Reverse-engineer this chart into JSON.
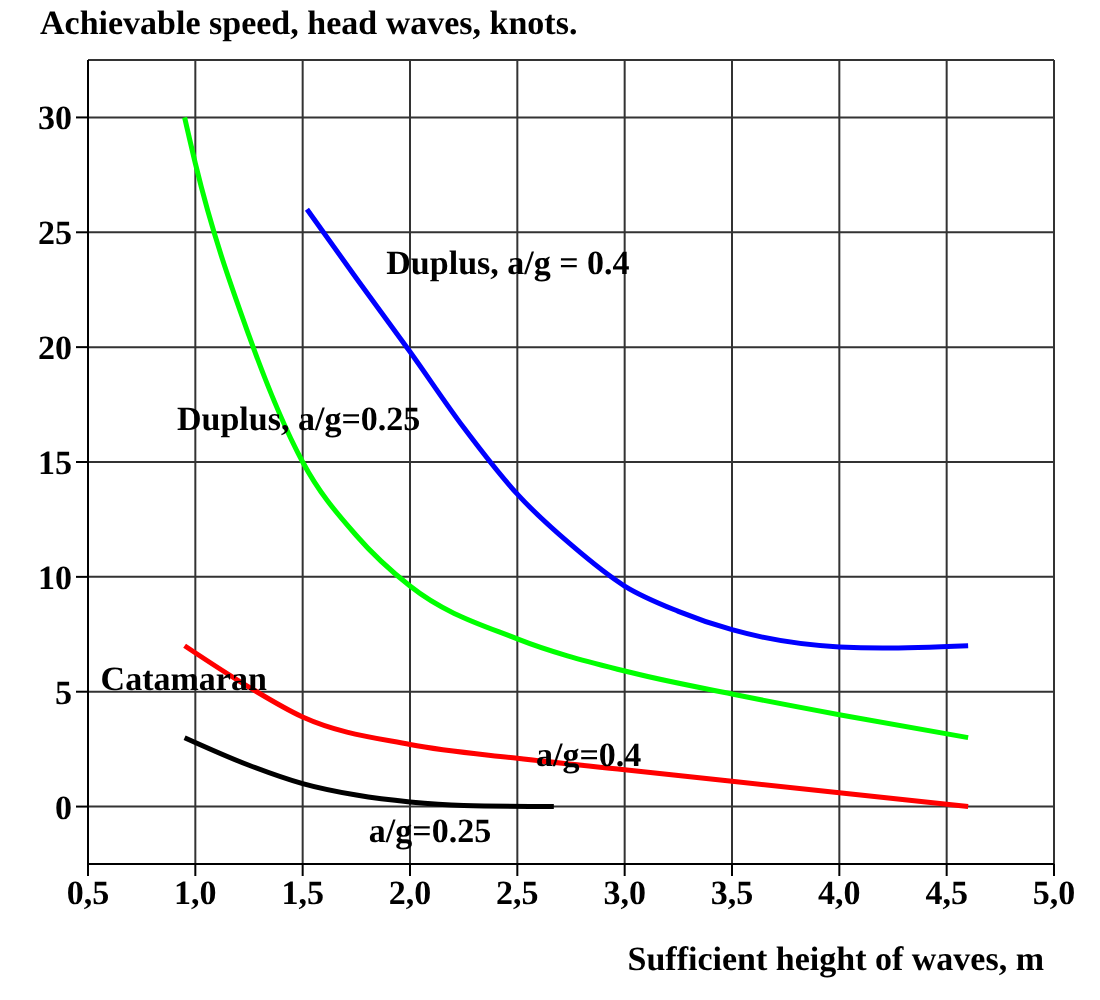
{
  "chart_data": {
    "type": "line",
    "title": "Achievable speed, head waves, knots.",
    "xlabel": "Sufficient height of waves, m",
    "xlim": [
      0.5,
      5.0
    ],
    "xticks": [
      {
        "value": 0.5,
        "label": "0,5"
      },
      {
        "value": 1.0,
        "label": "1,0"
      },
      {
        "value": 1.5,
        "label": "1,5"
      },
      {
        "value": 2.0,
        "label": "2,0"
      },
      {
        "value": 2.5,
        "label": "2,5"
      },
      {
        "value": 3.0,
        "label": "3,0"
      },
      {
        "value": 3.5,
        "label": "3,5"
      },
      {
        "value": 4.0,
        "label": "4,0"
      },
      {
        "value": 4.5,
        "label": "4,5"
      },
      {
        "value": 5.0,
        "label": "5,0"
      }
    ],
    "ylim": [
      -2.5,
      32.5
    ],
    "yticks": [
      0,
      5,
      10,
      15,
      20,
      25,
      30
    ],
    "grid": true,
    "legend": false,
    "marker": "none",
    "line_style": "solid",
    "series": [
      {
        "name": "Duplus, a/g = 0.4",
        "color": "#0000ff",
        "x": [
          1.52,
          1.75,
          2.0,
          2.25,
          2.5,
          2.75,
          3.0,
          3.25,
          3.5,
          4.0,
          4.2,
          4.6
        ],
        "values": [
          26,
          23,
          19.8,
          16.5,
          13.6,
          11.4,
          9.6,
          8.5,
          7.7,
          6.95,
          6.9,
          7.0
        ]
      },
      {
        "name": "Duplus, a/g=0.25",
        "color": "#00ff00",
        "x": [
          0.95,
          1.0,
          1.25,
          1.5,
          1.75,
          2.0,
          2.5,
          3.0,
          3.5,
          4.0,
          4.6
        ],
        "values": [
          30,
          28,
          20.5,
          15,
          11.8,
          9.6,
          7.3,
          5.9,
          4.9,
          4.0,
          3.0
        ]
      },
      {
        "name": "a/g=0.4",
        "color": "#ff0000",
        "x": [
          0.95,
          1.25,
          1.5,
          2.0,
          2.5,
          3.0,
          3.5,
          4.0,
          4.6
        ],
        "values": [
          7,
          5.2,
          3.9,
          2.7,
          2.1,
          1.6,
          1.1,
          0.6,
          0
        ]
      },
      {
        "name": "a/g=0.25",
        "color": "#000000",
        "x": [
          0.95,
          1.25,
          1.5,
          1.75,
          2.0,
          2.25,
          2.67
        ],
        "values": [
          3,
          1.8,
          1.0,
          0.5,
          0.2,
          0.05,
          0
        ]
      }
    ],
    "annotations": [
      "Catamaran"
    ]
  }
}
